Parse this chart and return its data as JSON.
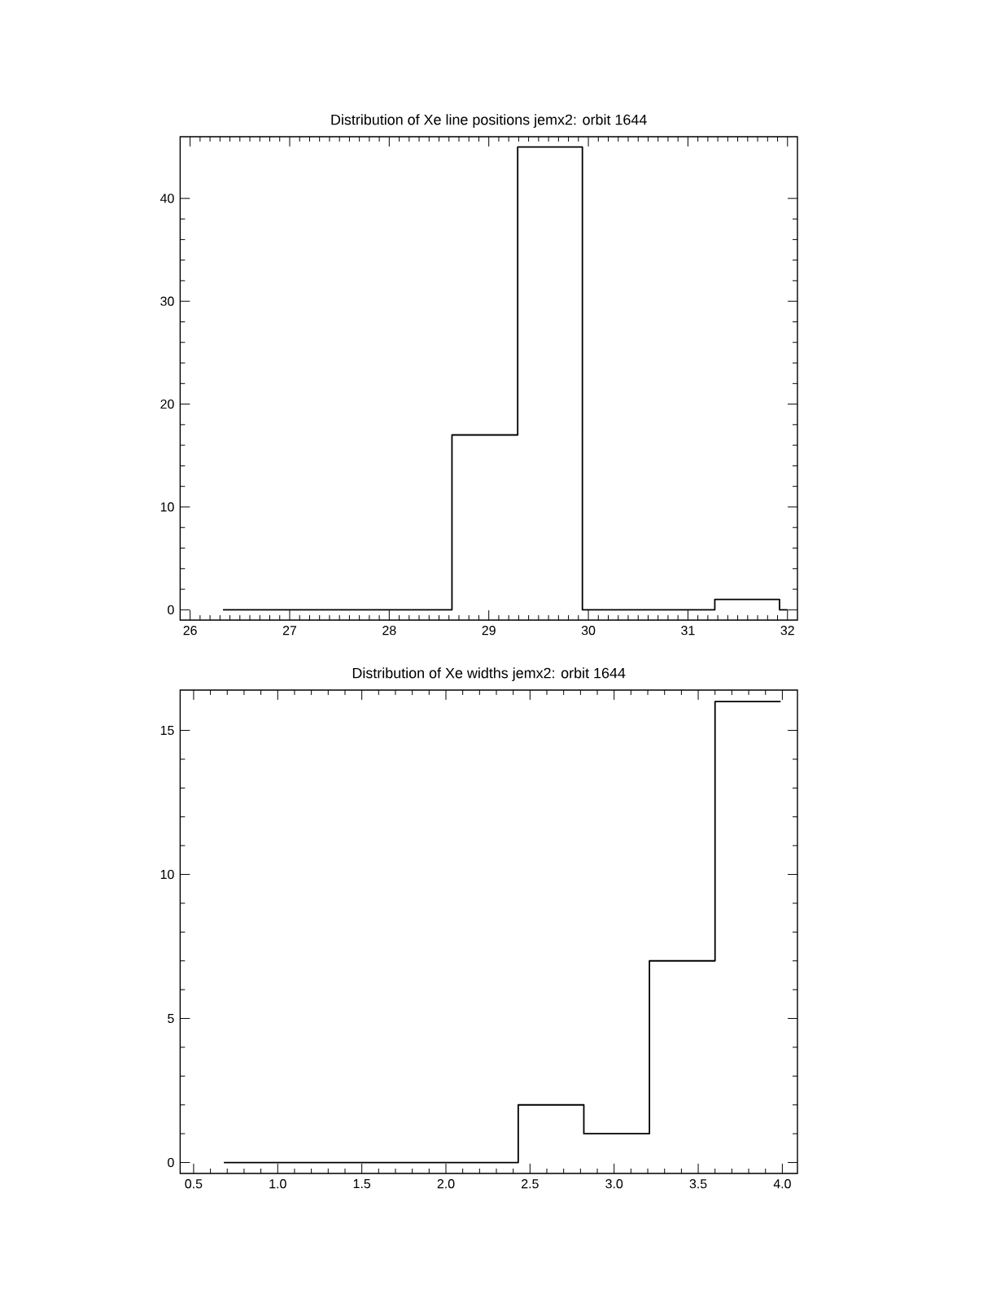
{
  "chart_data": [
    {
      "type": "histogram",
      "title": "Distribution of Xe line positions jemx2: orbit 1644",
      "bins": [
        26.33,
        27.31,
        27.97,
        28.63,
        29.29,
        29.94,
        30.6,
        31.27,
        31.92,
        32.0
      ],
      "values": [
        0,
        0,
        0,
        17,
        45,
        0,
        0,
        1,
        0
      ],
      "color": "#000000",
      "xlim": [
        25.9,
        32.1
      ],
      "ylim": [
        -1,
        46
      ],
      "xticks": [
        26,
        27,
        28,
        29,
        30,
        31,
        32
      ],
      "yticks": [
        0,
        10,
        20,
        30,
        40
      ]
    },
    {
      "type": "histogram",
      "title": "Distribution of Xe widths jemx2: orbit 1644",
      "bins": [
        0.68,
        2.43,
        2.82,
        3.21,
        3.6,
        3.99
      ],
      "values": [
        0,
        2,
        1,
        7,
        16
      ],
      "color": "#000000",
      "xlim": [
        0.42,
        4.09
      ],
      "ylim": [
        -0.38,
        16.4
      ],
      "xticks": [
        {
          "value": 0.5,
          "label": "0.5"
        },
        {
          "value": 1.0,
          "label": "1.0"
        },
        {
          "value": 1.5,
          "label": "1.5"
        },
        {
          "value": 2.0,
          "label": "2.0"
        },
        {
          "value": 2.5,
          "label": "2.5"
        },
        {
          "value": 3.0,
          "label": "3.0"
        },
        {
          "value": 3.5,
          "label": "3.5"
        },
        {
          "value": 4.0,
          "label": "4.0"
        }
      ],
      "yticks": [
        0,
        5,
        10,
        15
      ]
    }
  ]
}
